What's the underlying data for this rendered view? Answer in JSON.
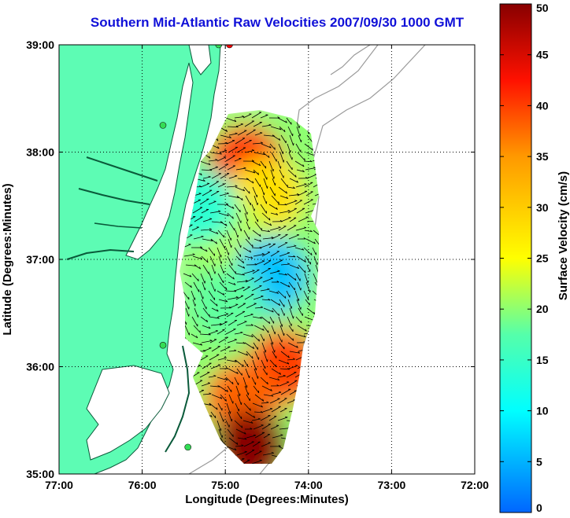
{
  "chart_data": {
    "type": "heatmap",
    "title": "Southern Mid-Atlantic Raw Velocities 2007/09/30 1000 GMT",
    "xlabel": "Longitude (Degrees:Minutes)",
    "ylabel": "Latitude (Degrees:Minutes)",
    "x_ticks": [
      "77:00",
      "76:00",
      "75:00",
      "74:00",
      "73:00",
      "72:00"
    ],
    "y_ticks": [
      "39:00",
      "38:00",
      "37:00",
      "36:00",
      "35:00"
    ],
    "xlim": [
      -77,
      -72
    ],
    "ylim": [
      35,
      39
    ],
    "grid": true,
    "colorbar": {
      "label": "Surface Velocity (cm/s)",
      "range": [
        0,
        50
      ],
      "ticks": [
        "0",
        "5",
        "10",
        "15",
        "20",
        "25",
        "30",
        "35",
        "40",
        "45",
        "50"
      ],
      "colormap": "jet"
    },
    "speed_zones": [
      {
        "lon": -74.75,
        "lat": 37.9,
        "value": 42
      },
      {
        "lon": -74.5,
        "lat": 37.6,
        "value": 28
      },
      {
        "lon": -74.9,
        "lat": 37.2,
        "value": 22
      },
      {
        "lon": -74.45,
        "lat": 36.85,
        "value": 6
      },
      {
        "lon": -75.0,
        "lat": 36.6,
        "value": 18
      },
      {
        "lon": -74.3,
        "lat": 36.0,
        "value": 40
      },
      {
        "lon": -74.8,
        "lat": 35.7,
        "value": 38
      },
      {
        "lon": -74.7,
        "lat": 35.25,
        "value": 50
      },
      {
        "lon": -75.3,
        "lat": 37.5,
        "value": 14
      }
    ],
    "stations": [
      {
        "lon": -74.95,
        "lat": 39.0,
        "color": "#ff0000"
      },
      {
        "lon": -75.08,
        "lat": 39.0,
        "color": "#33dd55"
      },
      {
        "lon": -75.75,
        "lat": 38.25,
        "color": "#33dd55"
      },
      {
        "lon": -75.75,
        "lat": 36.2,
        "color": "#33dd55"
      },
      {
        "lon": -75.45,
        "lat": 35.25,
        "color": "#33dd55"
      }
    ],
    "land_color": "#5dfcb4",
    "colors": {
      "title": "#1010d8",
      "grid": "#000000",
      "bathymetry": "#9a9a9a"
    }
  }
}
